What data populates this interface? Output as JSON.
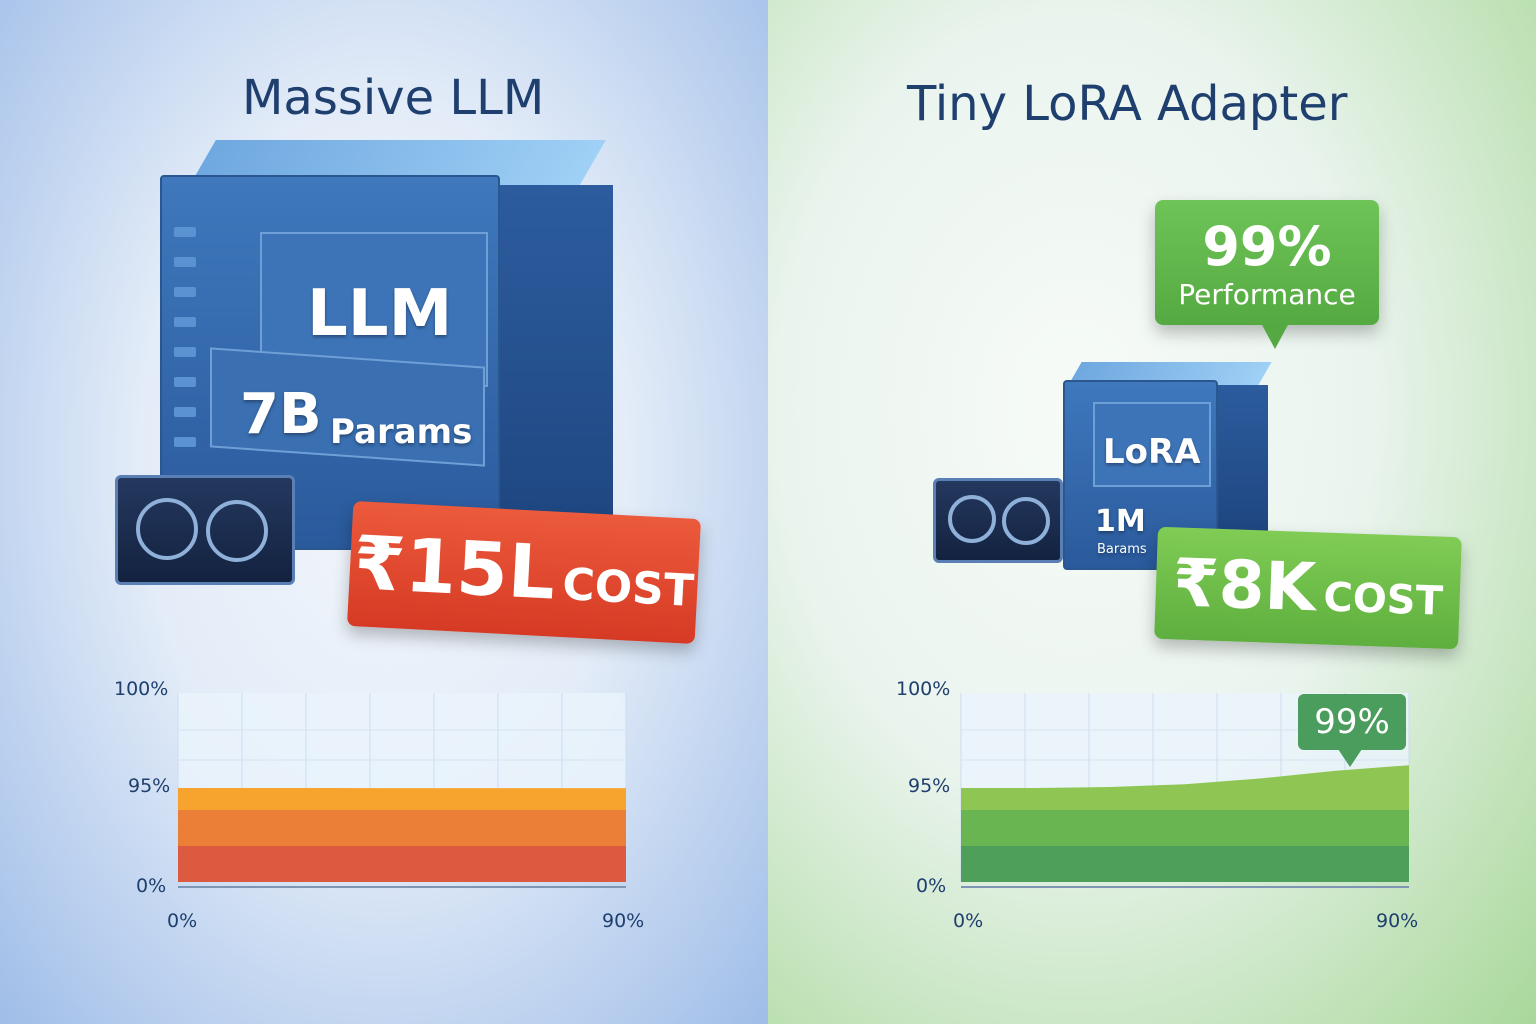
{
  "left": {
    "title": "Massive LLM",
    "server_label": "LLM",
    "params_value": "7B",
    "params_label": "Params",
    "cost_value": "₹15L",
    "cost_label": "COST"
  },
  "right": {
    "title": "Tiny LoRA Adapter",
    "server_label": "LoRA",
    "params_value": "1M",
    "params_label": "Barams",
    "cost_value": "₹8K",
    "cost_label": "COST",
    "badge_value": "99%",
    "badge_label": "Performance"
  },
  "colors": {
    "left_cost": "#e0442c",
    "right_cost": "#6cbd45",
    "badge": "#5fb548",
    "left_area": "#f0842e",
    "right_area": "#5cb44a"
  },
  "chart_data": [
    {
      "type": "area",
      "y_ticks": [
        "100%",
        "95%",
        "0%"
      ],
      "x_ticks": [
        "0%",
        "90%"
      ],
      "grid": true,
      "x": [
        0,
        15,
        30,
        45,
        60,
        75,
        90
      ],
      "values": [
        95,
        95,
        94.95,
        94.9,
        94.9,
        94.85,
        94.85
      ]
    },
    {
      "type": "area",
      "y_ticks": [
        "100%",
        "95%",
        "0%"
      ],
      "x_ticks": [
        "0%",
        "90%"
      ],
      "grid": true,
      "x": [
        0,
        15,
        30,
        45,
        60,
        75,
        90
      ],
      "values": [
        95,
        95,
        95.05,
        95.2,
        95.5,
        95.9,
        96.2
      ],
      "annotation": "99%"
    }
  ]
}
